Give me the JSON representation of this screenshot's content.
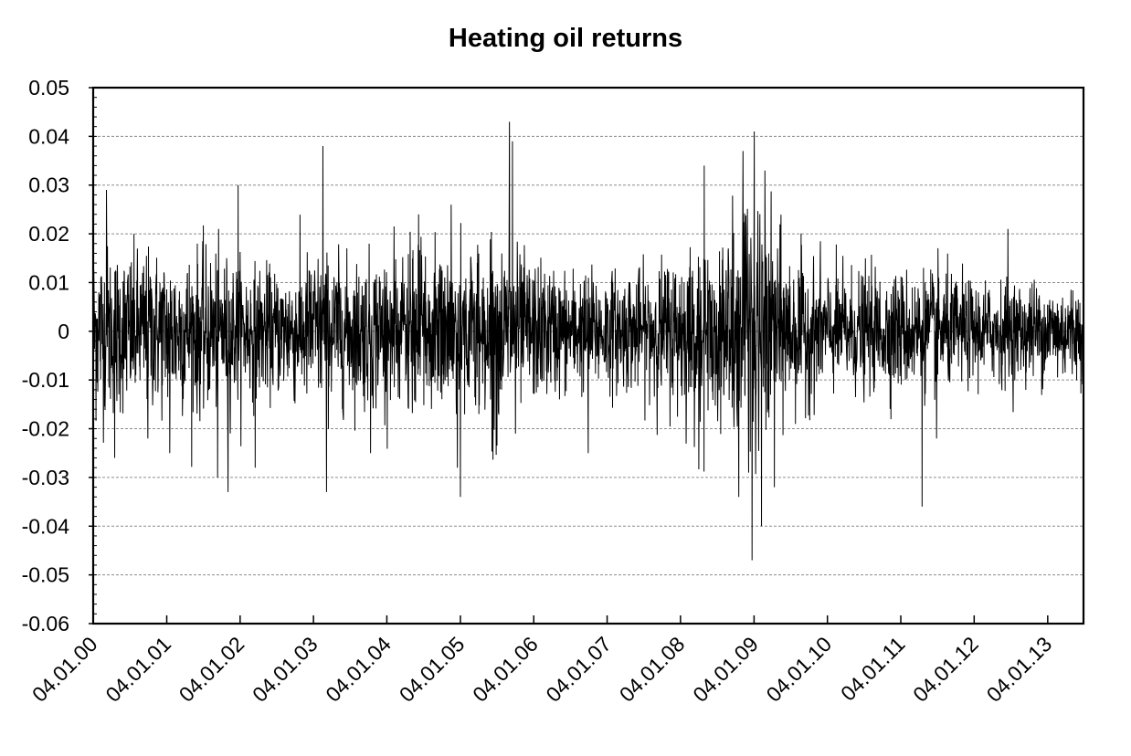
{
  "chart_data": {
    "type": "line",
    "title": "Heating oil returns",
    "xlabel": "",
    "ylabel": "",
    "ylim": [
      -0.06,
      0.05
    ],
    "y_ticks": [
      "0.05",
      "0.04",
      "0.03",
      "0.02",
      "0.01",
      "0",
      "-0.01",
      "-0.02",
      "-0.03",
      "-0.04",
      "-0.05",
      "-0.06"
    ],
    "y_tick_values": [
      0.05,
      0.04,
      0.03,
      0.02,
      0.01,
      0,
      -0.01,
      -0.02,
      -0.03,
      -0.04,
      -0.05,
      -0.06
    ],
    "x_ticks": [
      "04.01.00",
      "04.01.01",
      "04.01.02",
      "04.01.03",
      "04.01.04",
      "04.01.05",
      "04.01.06",
      "04.01.07",
      "04.01.08",
      "04.01.09",
      "04.01.10",
      "04.01.11",
      "04.01.12",
      "04.01.13"
    ],
    "xlim": [
      "2000-01-04",
      "2013-07-01"
    ],
    "grid": "horizontal dashed",
    "line_color": "#000000",
    "extreme_points": [
      {
        "x": "2000-01-05",
        "y": 0.028
      },
      {
        "x": "2000-03-10",
        "y": 0.029
      },
      {
        "x": "2000-04-20",
        "y": -0.026
      },
      {
        "x": "2000-10-01",
        "y": -0.022
      },
      {
        "x": "2001-01-20",
        "y": -0.025
      },
      {
        "x": "2001-09-15",
        "y": -0.03
      },
      {
        "x": "2001-11-05",
        "y": -0.033
      },
      {
        "x": "2001-12-25",
        "y": 0.03
      },
      {
        "x": "2002-03-20",
        "y": -0.028
      },
      {
        "x": "2003-02-20",
        "y": 0.038
      },
      {
        "x": "2003-03-10",
        "y": -0.033
      },
      {
        "x": "2003-10-15",
        "y": -0.025
      },
      {
        "x": "2004-06-10",
        "y": 0.024
      },
      {
        "x": "2004-11-20",
        "y": 0.026
      },
      {
        "x": "2004-12-20",
        "y": -0.028
      },
      {
        "x": "2005-01-04",
        "y": -0.034
      },
      {
        "x": "2005-09-05",
        "y": 0.043
      },
      {
        "x": "2005-09-20",
        "y": 0.039
      },
      {
        "x": "2005-10-05",
        "y": -0.021
      },
      {
        "x": "2006-10-01",
        "y": -0.025
      },
      {
        "x": "2008-05-01",
        "y": 0.034
      },
      {
        "x": "2008-10-20",
        "y": -0.034
      },
      {
        "x": "2008-11-10",
        "y": 0.037
      },
      {
        "x": "2008-12-25",
        "y": -0.047
      },
      {
        "x": "2009-01-05",
        "y": 0.041
      },
      {
        "x": "2009-02-10",
        "y": -0.04
      },
      {
        "x": "2009-02-28",
        "y": 0.033
      },
      {
        "x": "2009-04-15",
        "y": -0.032
      },
      {
        "x": "2011-04-20",
        "y": -0.036
      },
      {
        "x": "2011-07-01",
        "y": -0.022
      },
      {
        "x": "2012-06-20",
        "y": 0.021
      },
      {
        "x": "2013-07-01",
        "y": -0.013
      }
    ],
    "volatility_profile": [
      {
        "x": "2000-01-04",
        "sd": 0.009
      },
      {
        "x": "2000-07-01",
        "sd": 0.008
      },
      {
        "x": "2001-01-01",
        "sd": 0.008
      },
      {
        "x": "2001-07-01",
        "sd": 0.008
      },
      {
        "x": "2002-01-01",
        "sd": 0.007
      },
      {
        "x": "2002-07-01",
        "sd": 0.006
      },
      {
        "x": "2003-01-01",
        "sd": 0.008
      },
      {
        "x": "2003-07-01",
        "sd": 0.007
      },
      {
        "x": "2004-01-01",
        "sd": 0.008
      },
      {
        "x": "2004-07-01",
        "sd": 0.008
      },
      {
        "x": "2005-01-01",
        "sd": 0.008
      },
      {
        "x": "2005-07-01",
        "sd": 0.009
      },
      {
        "x": "2006-01-01",
        "sd": 0.007
      },
      {
        "x": "2006-07-01",
        "sd": 0.006
      },
      {
        "x": "2007-01-01",
        "sd": 0.006
      },
      {
        "x": "2007-07-01",
        "sd": 0.006
      },
      {
        "x": "2008-01-01",
        "sd": 0.008
      },
      {
        "x": "2008-07-01",
        "sd": 0.009
      },
      {
        "x": "2008-10-15",
        "sd": 0.013
      },
      {
        "x": "2009-01-01",
        "sd": 0.013
      },
      {
        "x": "2009-07-01",
        "sd": 0.008
      },
      {
        "x": "2010-01-01",
        "sd": 0.006
      },
      {
        "x": "2010-07-01",
        "sd": 0.006
      },
      {
        "x": "2011-01-01",
        "sd": 0.006
      },
      {
        "x": "2011-07-01",
        "sd": 0.006
      },
      {
        "x": "2012-01-01",
        "sd": 0.005
      },
      {
        "x": "2012-07-01",
        "sd": 0.005
      },
      {
        "x": "2013-01-01",
        "sd": 0.005
      },
      {
        "x": "2013-07-01",
        "sd": 0.005
      }
    ]
  }
}
